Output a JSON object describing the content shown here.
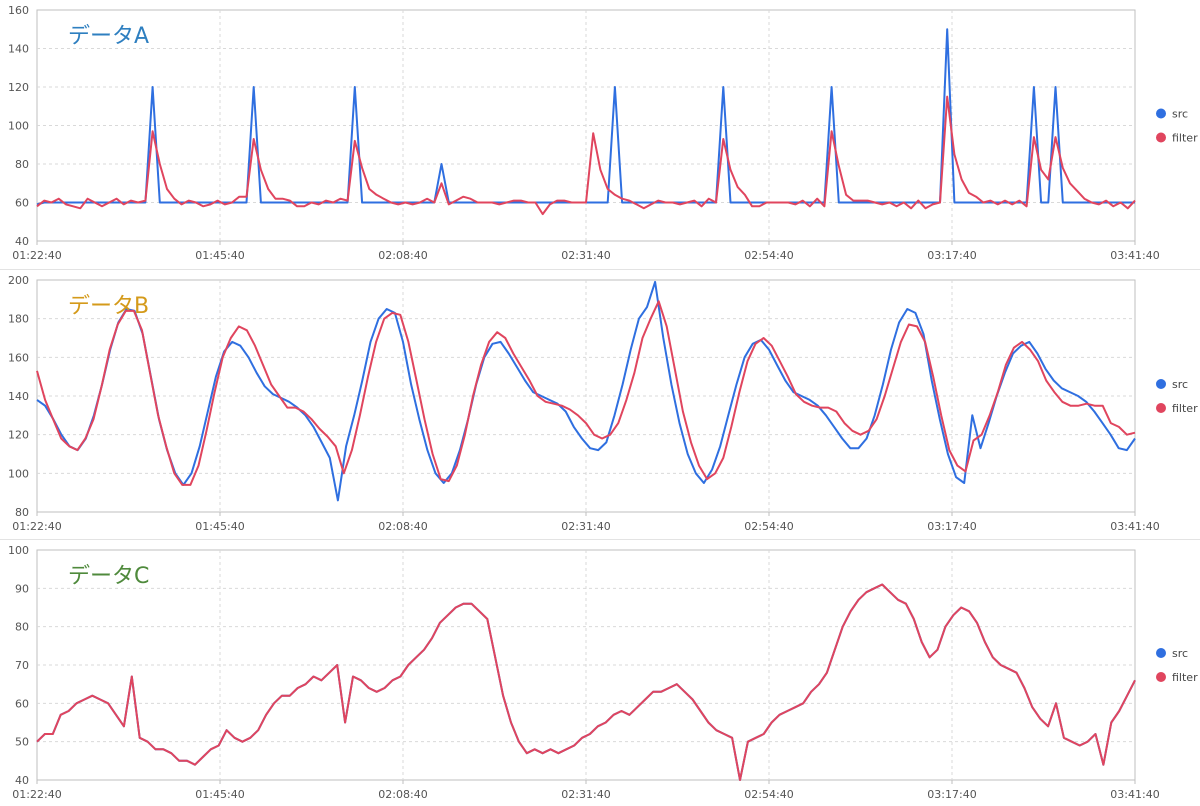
{
  "colors": {
    "src": "#2f6fe0",
    "filter": "#e0455e",
    "grid": "#d9d9d9",
    "axis": "#bfbfbf",
    "tick": "#555555"
  },
  "legend_labels": [
    "src",
    "filter"
  ],
  "chart_data": [
    {
      "type": "line",
      "title": "データA",
      "title_color": "#2e7fc0",
      "x_ticks": [
        "01:22:40",
        "01:45:40",
        "02:08:40",
        "02:31:40",
        "02:54:40",
        "03:17:40",
        "03:41:40"
      ],
      "y_ticks": [
        40,
        60,
        80,
        100,
        120,
        140,
        160
      ],
      "ylim": [
        40,
        160
      ],
      "grid": true,
      "legend": "right",
      "series": [
        {
          "name": "src",
          "values": [
            59,
            60,
            60,
            60,
            60,
            60,
            60,
            60,
            60,
            60,
            60,
            60,
            60,
            60,
            60,
            60,
            120,
            60,
            60,
            60,
            60,
            60,
            60,
            60,
            60,
            60,
            60,
            60,
            60,
            60,
            120,
            60,
            60,
            60,
            60,
            60,
            60,
            60,
            60,
            60,
            60,
            60,
            60,
            60,
            120,
            60,
            60,
            60,
            60,
            60,
            60,
            60,
            60,
            60,
            60,
            60,
            80,
            60,
            60,
            60,
            60,
            60,
            60,
            60,
            60,
            60,
            60,
            60,
            60,
            60,
            60,
            60,
            60,
            60,
            60,
            60,
            60,
            60,
            60,
            60,
            120,
            60,
            60,
            60,
            60,
            60,
            60,
            60,
            60,
            60,
            60,
            60,
            60,
            60,
            60,
            120,
            60,
            60,
            60,
            60,
            60,
            60,
            60,
            60,
            60,
            60,
            60,
            60,
            60,
            60,
            120,
            60,
            60,
            60,
            60,
            60,
            60,
            60,
            60,
            60,
            60,
            60,
            60,
            60,
            60,
            60,
            150,
            60,
            60,
            60,
            60,
            60,
            60,
            60,
            60,
            60,
            60,
            60,
            120,
            60,
            60,
            120,
            60,
            60,
            60,
            60,
            60,
            60,
            60,
            60,
            60,
            60,
            60
          ]
        },
        {
          "name": "filter",
          "values": [
            58,
            61,
            60,
            62,
            59,
            58,
            57,
            62,
            60,
            58,
            60,
            62,
            59,
            61,
            60,
            61,
            97,
            80,
            67,
            62,
            59,
            61,
            60,
            58,
            59,
            61,
            59,
            60,
            63,
            63,
            93,
            77,
            67,
            62,
            62,
            61,
            58,
            58,
            60,
            59,
            61,
            60,
            62,
            61,
            92,
            78,
            67,
            64,
            62,
            60,
            59,
            60,
            59,
            60,
            62,
            60,
            70,
            59,
            61,
            63,
            62,
            60,
            60,
            60,
            59,
            60,
            61,
            61,
            60,
            60,
            54,
            59,
            61,
            61,
            60,
            60,
            60,
            96,
            77,
            67,
            64,
            62,
            61,
            59,
            57,
            59,
            61,
            60,
            60,
            59,
            60,
            61,
            58,
            62,
            60,
            93,
            77,
            68,
            64,
            58,
            58,
            60,
            60,
            60,
            60,
            59,
            61,
            58,
            62,
            58,
            97,
            79,
            64,
            61,
            61,
            61,
            60,
            59,
            60,
            58,
            60,
            57,
            61,
            57,
            59,
            60,
            115,
            85,
            72,
            65,
            63,
            60,
            61,
            59,
            61,
            59,
            61,
            58,
            94,
            77,
            72,
            94,
            78,
            70,
            66,
            62,
            60,
            59,
            61,
            58,
            60,
            57,
            61
          ]
        }
      ]
    },
    {
      "type": "line",
      "title": "データB",
      "title_color": "#d49a1a",
      "x_ticks": [
        "01:22:40",
        "01:45:40",
        "02:08:40",
        "02:31:40",
        "02:54:40",
        "03:17:40",
        "03:41:40"
      ],
      "y_ticks": [
        80,
        100,
        120,
        140,
        160,
        180,
        200
      ],
      "ylim": [
        80,
        200
      ],
      "grid": true,
      "legend": "right",
      "series": [
        {
          "name": "src",
          "values": [
            138,
            135,
            128,
            120,
            114,
            112,
            118,
            130,
            146,
            164,
            178,
            185,
            184,
            172,
            150,
            128,
            112,
            100,
            94,
            100,
            114,
            132,
            150,
            163,
            168,
            166,
            160,
            152,
            145,
            141,
            139,
            137,
            134,
            130,
            124,
            116,
            108,
            86,
            114,
            130,
            148,
            168,
            180,
            185,
            183,
            168,
            146,
            128,
            112,
            100,
            95,
            100,
            112,
            128,
            146,
            160,
            167,
            168,
            162,
            155,
            148,
            142,
            140,
            138,
            136,
            132,
            124,
            118,
            113,
            112,
            116,
            130,
            146,
            164,
            180,
            186,
            199,
            170,
            146,
            126,
            110,
            100,
            95,
            102,
            114,
            130,
            146,
            160,
            167,
            169,
            164,
            156,
            148,
            142,
            140,
            138,
            135,
            130,
            124,
            118,
            113,
            113,
            118,
            130,
            146,
            164,
            178,
            185,
            183,
            172,
            148,
            128,
            110,
            98,
            95,
            130,
            113,
            126,
            140,
            152,
            162,
            166,
            168,
            162,
            154,
            148,
            144,
            142,
            140,
            137,
            132,
            126,
            120,
            113,
            112,
            118
          ]
        },
        {
          "name": "filter",
          "values": [
            153,
            138,
            128,
            118,
            114,
            112,
            118,
            128,
            145,
            164,
            177,
            184,
            184,
            174,
            152,
            130,
            114,
            100,
            94,
            94,
            104,
            122,
            142,
            160,
            170,
            176,
            174,
            166,
            156,
            146,
            140,
            134,
            134,
            132,
            128,
            123,
            119,
            114,
            100,
            112,
            130,
            150,
            168,
            180,
            183,
            182,
            168,
            148,
            128,
            110,
            97,
            96,
            104,
            120,
            140,
            156,
            168,
            173,
            170,
            162,
            155,
            148,
            140,
            137,
            136,
            135,
            133,
            130,
            126,
            120,
            118,
            120,
            126,
            138,
            152,
            170,
            180,
            189,
            176,
            154,
            132,
            116,
            104,
            97,
            100,
            108,
            124,
            142,
            158,
            167,
            170,
            166,
            158,
            150,
            141,
            137,
            135,
            134,
            134,
            132,
            126,
            122,
            120,
            122,
            128,
            140,
            154,
            168,
            177,
            176,
            168,
            150,
            130,
            112,
            104,
            101,
            117,
            120,
            130,
            142,
            156,
            165,
            168,
            164,
            158,
            148,
            142,
            137,
            135,
            135,
            136,
            135,
            135,
            126,
            124,
            120,
            121
          ]
        }
      ]
    },
    {
      "type": "line",
      "title": "データC",
      "title_color": "#4f8a3c",
      "x_ticks": [
        "01:22:40",
        "01:45:40",
        "02:08:40",
        "02:31:40",
        "02:54:40",
        "03:17:40",
        "03:41:40"
      ],
      "y_ticks": [
        40,
        50,
        60,
        70,
        80,
        90,
        100
      ],
      "ylim": [
        40,
        100
      ],
      "grid": true,
      "legend": "right",
      "series": [
        {
          "name": "src",
          "values": [
            50,
            52,
            52,
            57,
            58,
            60,
            61,
            62,
            61,
            60,
            57,
            54,
            67,
            51,
            50,
            48,
            48,
            47,
            45,
            45,
            44,
            46,
            48,
            49,
            53,
            51,
            50,
            51,
            53,
            57,
            60,
            62,
            62,
            64,
            65,
            67,
            66,
            68,
            70,
            55,
            67,
            66,
            64,
            63,
            64,
            66,
            67,
            70,
            72,
            74,
            77,
            81,
            83,
            85,
            86,
            86,
            84,
            82,
            72,
            62,
            55,
            50,
            47,
            48,
            47,
            48,
            47,
            48,
            49,
            51,
            52,
            54,
            55,
            57,
            58,
            57,
            59,
            61,
            63,
            63,
            64,
            65,
            63,
            61,
            58,
            55,
            53,
            52,
            51,
            40,
            50,
            51,
            52,
            55,
            57,
            58,
            59,
            60,
            63,
            65,
            68,
            74,
            80,
            84,
            87,
            89,
            90,
            91,
            89,
            87,
            86,
            82,
            76,
            72,
            74,
            80,
            83,
            85,
            84,
            81,
            76,
            72,
            70,
            69,
            68,
            64,
            59,
            56,
            54,
            60,
            51,
            50,
            49,
            50,
            52,
            44,
            55,
            58,
            62,
            66
          ]
        },
        {
          "name": "filter",
          "values": [
            50,
            52,
            52,
            57,
            58,
            60,
            61,
            62,
            61,
            60,
            57,
            54,
            67,
            51,
            50,
            48,
            48,
            47,
            45,
            45,
            44,
            46,
            48,
            49,
            53,
            51,
            50,
            51,
            53,
            57,
            60,
            62,
            62,
            64,
            65,
            67,
            66,
            68,
            70,
            55,
            67,
            66,
            64,
            63,
            64,
            66,
            67,
            70,
            72,
            74,
            77,
            81,
            83,
            85,
            86,
            86,
            84,
            82,
            72,
            62,
            55,
            50,
            47,
            48,
            47,
            48,
            47,
            48,
            49,
            51,
            52,
            54,
            55,
            57,
            58,
            57,
            59,
            61,
            63,
            63,
            64,
            65,
            63,
            61,
            58,
            55,
            53,
            52,
            51,
            40,
            50,
            51,
            52,
            55,
            57,
            58,
            59,
            60,
            63,
            65,
            68,
            74,
            80,
            84,
            87,
            89,
            90,
            91,
            89,
            87,
            86,
            82,
            76,
            72,
            74,
            80,
            83,
            85,
            84,
            81,
            76,
            72,
            70,
            69,
            68,
            64,
            59,
            56,
            54,
            60,
            51,
            50,
            49,
            50,
            52,
            44,
            55,
            58,
            62,
            66
          ]
        }
      ]
    }
  ]
}
